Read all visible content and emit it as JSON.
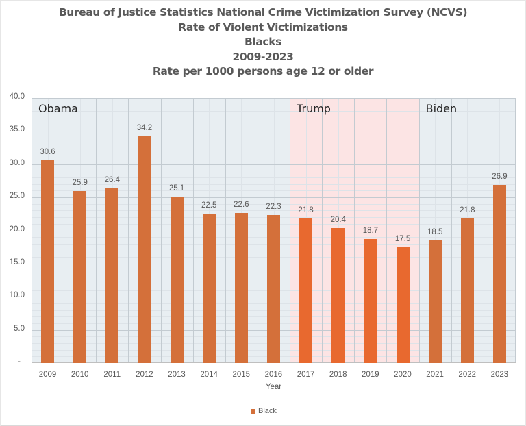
{
  "titles": [
    "Bureau of Justice Statistics National Crime Victimization Survey (NCVS)",
    "Rate of Violent Victimizations",
    "Blacks",
    "2009-2023",
    "Rate per 1000 persons age 12 or older"
  ],
  "colors": {
    "bar_default": "#D4703A",
    "bar_trump": "#E8692F",
    "band_obama": "#E8EEF2",
    "band_trump": "#FCE4E4",
    "band_biden": "#E8EEF2"
  },
  "eras": [
    {
      "label": "Obama",
      "start_index": 0,
      "end_index": 7
    },
    {
      "label": "Trump",
      "start_index": 8,
      "end_index": 11
    },
    {
      "label": "Biden",
      "start_index": 12,
      "end_index": 14
    }
  ],
  "chart_data": {
    "type": "bar",
    "title": "Bureau of Justice Statistics National Crime Victimization Survey (NCVS) / Rate of Violent Victimizations / Blacks / 2009-2023 / Rate per 1000 persons age 12 or older",
    "categories": [
      "2009",
      "2010",
      "2011",
      "2012",
      "2013",
      "2014",
      "2015",
      "2016",
      "2017",
      "2018",
      "2019",
      "2020",
      "2021",
      "2022",
      "2023"
    ],
    "series": [
      {
        "name": "Black",
        "values": [
          30.6,
          25.9,
          26.4,
          34.2,
          25.1,
          22.5,
          22.6,
          22.3,
          21.8,
          20.4,
          18.7,
          17.5,
          18.5,
          21.8,
          26.9
        ]
      }
    ],
    "data_labels": [
      "30.6",
      "25.9",
      "26.4",
      "34.2",
      "25.1",
      "22.5",
      "22.6",
      "22.3",
      "21.8",
      "20.4",
      "18.7",
      "17.5",
      "18.5",
      "21.8",
      "26.9"
    ],
    "xlabel": "Year",
    "ylabel": "",
    "ylim": [
      0,
      40
    ],
    "yticks": [
      "-",
      "5.0",
      "10.0",
      "15.0",
      "20.0",
      "25.0",
      "30.0",
      "35.0",
      "40.0"
    ],
    "grid": true,
    "legend": {
      "position": "bottom",
      "entries": [
        "Black"
      ]
    },
    "annotations": [
      "Obama",
      "Trump",
      "Biden"
    ]
  }
}
